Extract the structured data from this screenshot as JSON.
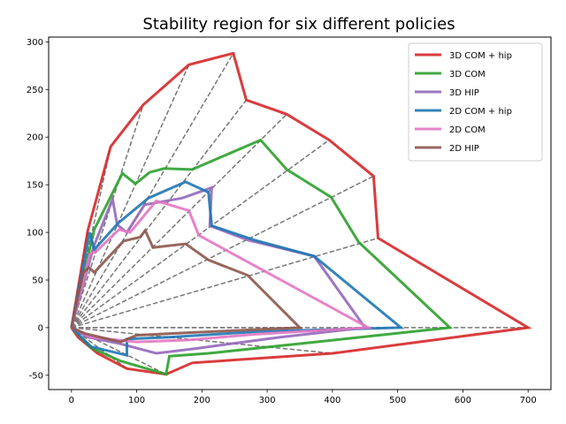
{
  "chart_data": {
    "type": "line",
    "title": "Stability region for six different policies",
    "xlabel": "",
    "ylabel": "",
    "xlim": [
      -35,
      735
    ],
    "ylim": [
      -65,
      305
    ],
    "xticks": [
      0,
      100,
      200,
      300,
      400,
      500,
      600,
      700
    ],
    "yticks": [
      -50,
      0,
      50,
      100,
      150,
      200,
      250,
      300
    ],
    "grid": false,
    "legend_position": "top-right",
    "reference_lines": {
      "style": "dashed",
      "color": "#777777",
      "origin": [
        0,
        0
      ],
      "endpoints": [
        [
          700,
          0
        ],
        [
          470,
          94
        ],
        [
          463,
          159
        ],
        [
          395,
          197
        ],
        [
          330,
          224
        ],
        [
          268,
          239
        ],
        [
          248,
          288
        ],
        [
          180,
          276
        ],
        [
          110,
          234
        ],
        [
          60,
          190
        ],
        [
          25,
          102
        ],
        [
          18,
          58
        ],
        [
          350,
          0
        ],
        [
          400,
          -27
        ],
        [
          145,
          -49
        ],
        [
          85,
          -43
        ],
        [
          40,
          -27
        ]
      ]
    },
    "series": [
      {
        "name": "3D COM + hip",
        "color": "#d62728",
        "points": [
          [
            0,
            0
          ],
          [
            25,
            102
          ],
          [
            60,
            190
          ],
          [
            110,
            234
          ],
          [
            180,
            276
          ],
          [
            248,
            288
          ],
          [
            268,
            239
          ],
          [
            330,
            224
          ],
          [
            395,
            197
          ],
          [
            463,
            159
          ],
          [
            470,
            94
          ],
          [
            700,
            0
          ],
          [
            400,
            -27
          ],
          [
            185,
            -37
          ],
          [
            145,
            -49
          ],
          [
            85,
            -43
          ],
          [
            40,
            -27
          ],
          [
            10,
            -10
          ],
          [
            0,
            0
          ]
        ]
      },
      {
        "name": "3D COM",
        "color": "#2ca02c",
        "points": [
          [
            0,
            0
          ],
          [
            35,
            103
          ],
          [
            78,
            162
          ],
          [
            98,
            151
          ],
          [
            120,
            163
          ],
          [
            142,
            167
          ],
          [
            185,
            166
          ],
          [
            290,
            197
          ],
          [
            330,
            166
          ],
          [
            398,
            137
          ],
          [
            440,
            90
          ],
          [
            580,
            0
          ],
          [
            375,
            -15
          ],
          [
            210,
            -27
          ],
          [
            150,
            -30
          ],
          [
            145,
            -49
          ],
          [
            75,
            -35
          ],
          [
            30,
            -21
          ],
          [
            0,
            0
          ]
        ]
      },
      {
        "name": "3D HIP",
        "color": "#9467bd",
        "points": [
          [
            0,
            0
          ],
          [
            34,
            85
          ],
          [
            63,
            135
          ],
          [
            70,
            108
          ],
          [
            85,
            100
          ],
          [
            112,
            129
          ],
          [
            170,
            136
          ],
          [
            215,
            147
          ],
          [
            212,
            107
          ],
          [
            270,
            92
          ],
          [
            372,
            75
          ],
          [
            450,
            0
          ],
          [
            320,
            -10
          ],
          [
            190,
            -22
          ],
          [
            130,
            -27
          ],
          [
            75,
            -17
          ],
          [
            25,
            -10
          ],
          [
            0,
            0
          ]
        ]
      },
      {
        "name": "2D COM + hip",
        "color": "#1f77b4",
        "points": [
          [
            0,
            0
          ],
          [
            28,
            100
          ],
          [
            35,
            82
          ],
          [
            72,
            110
          ],
          [
            118,
            136
          ],
          [
            175,
            153
          ],
          [
            210,
            142
          ],
          [
            215,
            107
          ],
          [
            280,
            92
          ],
          [
            372,
            75
          ],
          [
            505,
            0
          ],
          [
            290,
            -4
          ],
          [
            150,
            -10
          ],
          [
            85,
            -12
          ],
          [
            85,
            -29
          ],
          [
            30,
            -20
          ],
          [
            0,
            0
          ]
        ]
      },
      {
        "name": "2D COM",
        "color": "#e377c2",
        "points": [
          [
            0,
            0
          ],
          [
            28,
            77
          ],
          [
            38,
            80
          ],
          [
            73,
            103
          ],
          [
            90,
            100
          ],
          [
            130,
            133
          ],
          [
            180,
            123
          ],
          [
            195,
            97
          ],
          [
            455,
            0
          ],
          [
            280,
            -7
          ],
          [
            180,
            -13
          ],
          [
            100,
            -15
          ],
          [
            30,
            -10
          ],
          [
            0,
            0
          ]
        ]
      },
      {
        "name": "2D HIP",
        "color": "#8c564b",
        "points": [
          [
            0,
            0
          ],
          [
            18,
            58
          ],
          [
            27,
            63
          ],
          [
            35,
            58
          ],
          [
            80,
            91
          ],
          [
            105,
            95
          ],
          [
            113,
            102
          ],
          [
            125,
            84
          ],
          [
            175,
            88
          ],
          [
            210,
            71
          ],
          [
            270,
            55
          ],
          [
            350,
            0
          ],
          [
            190,
            -5
          ],
          [
            100,
            -8
          ],
          [
            75,
            -15
          ],
          [
            20,
            -6
          ],
          [
            0,
            0
          ]
        ]
      }
    ]
  }
}
